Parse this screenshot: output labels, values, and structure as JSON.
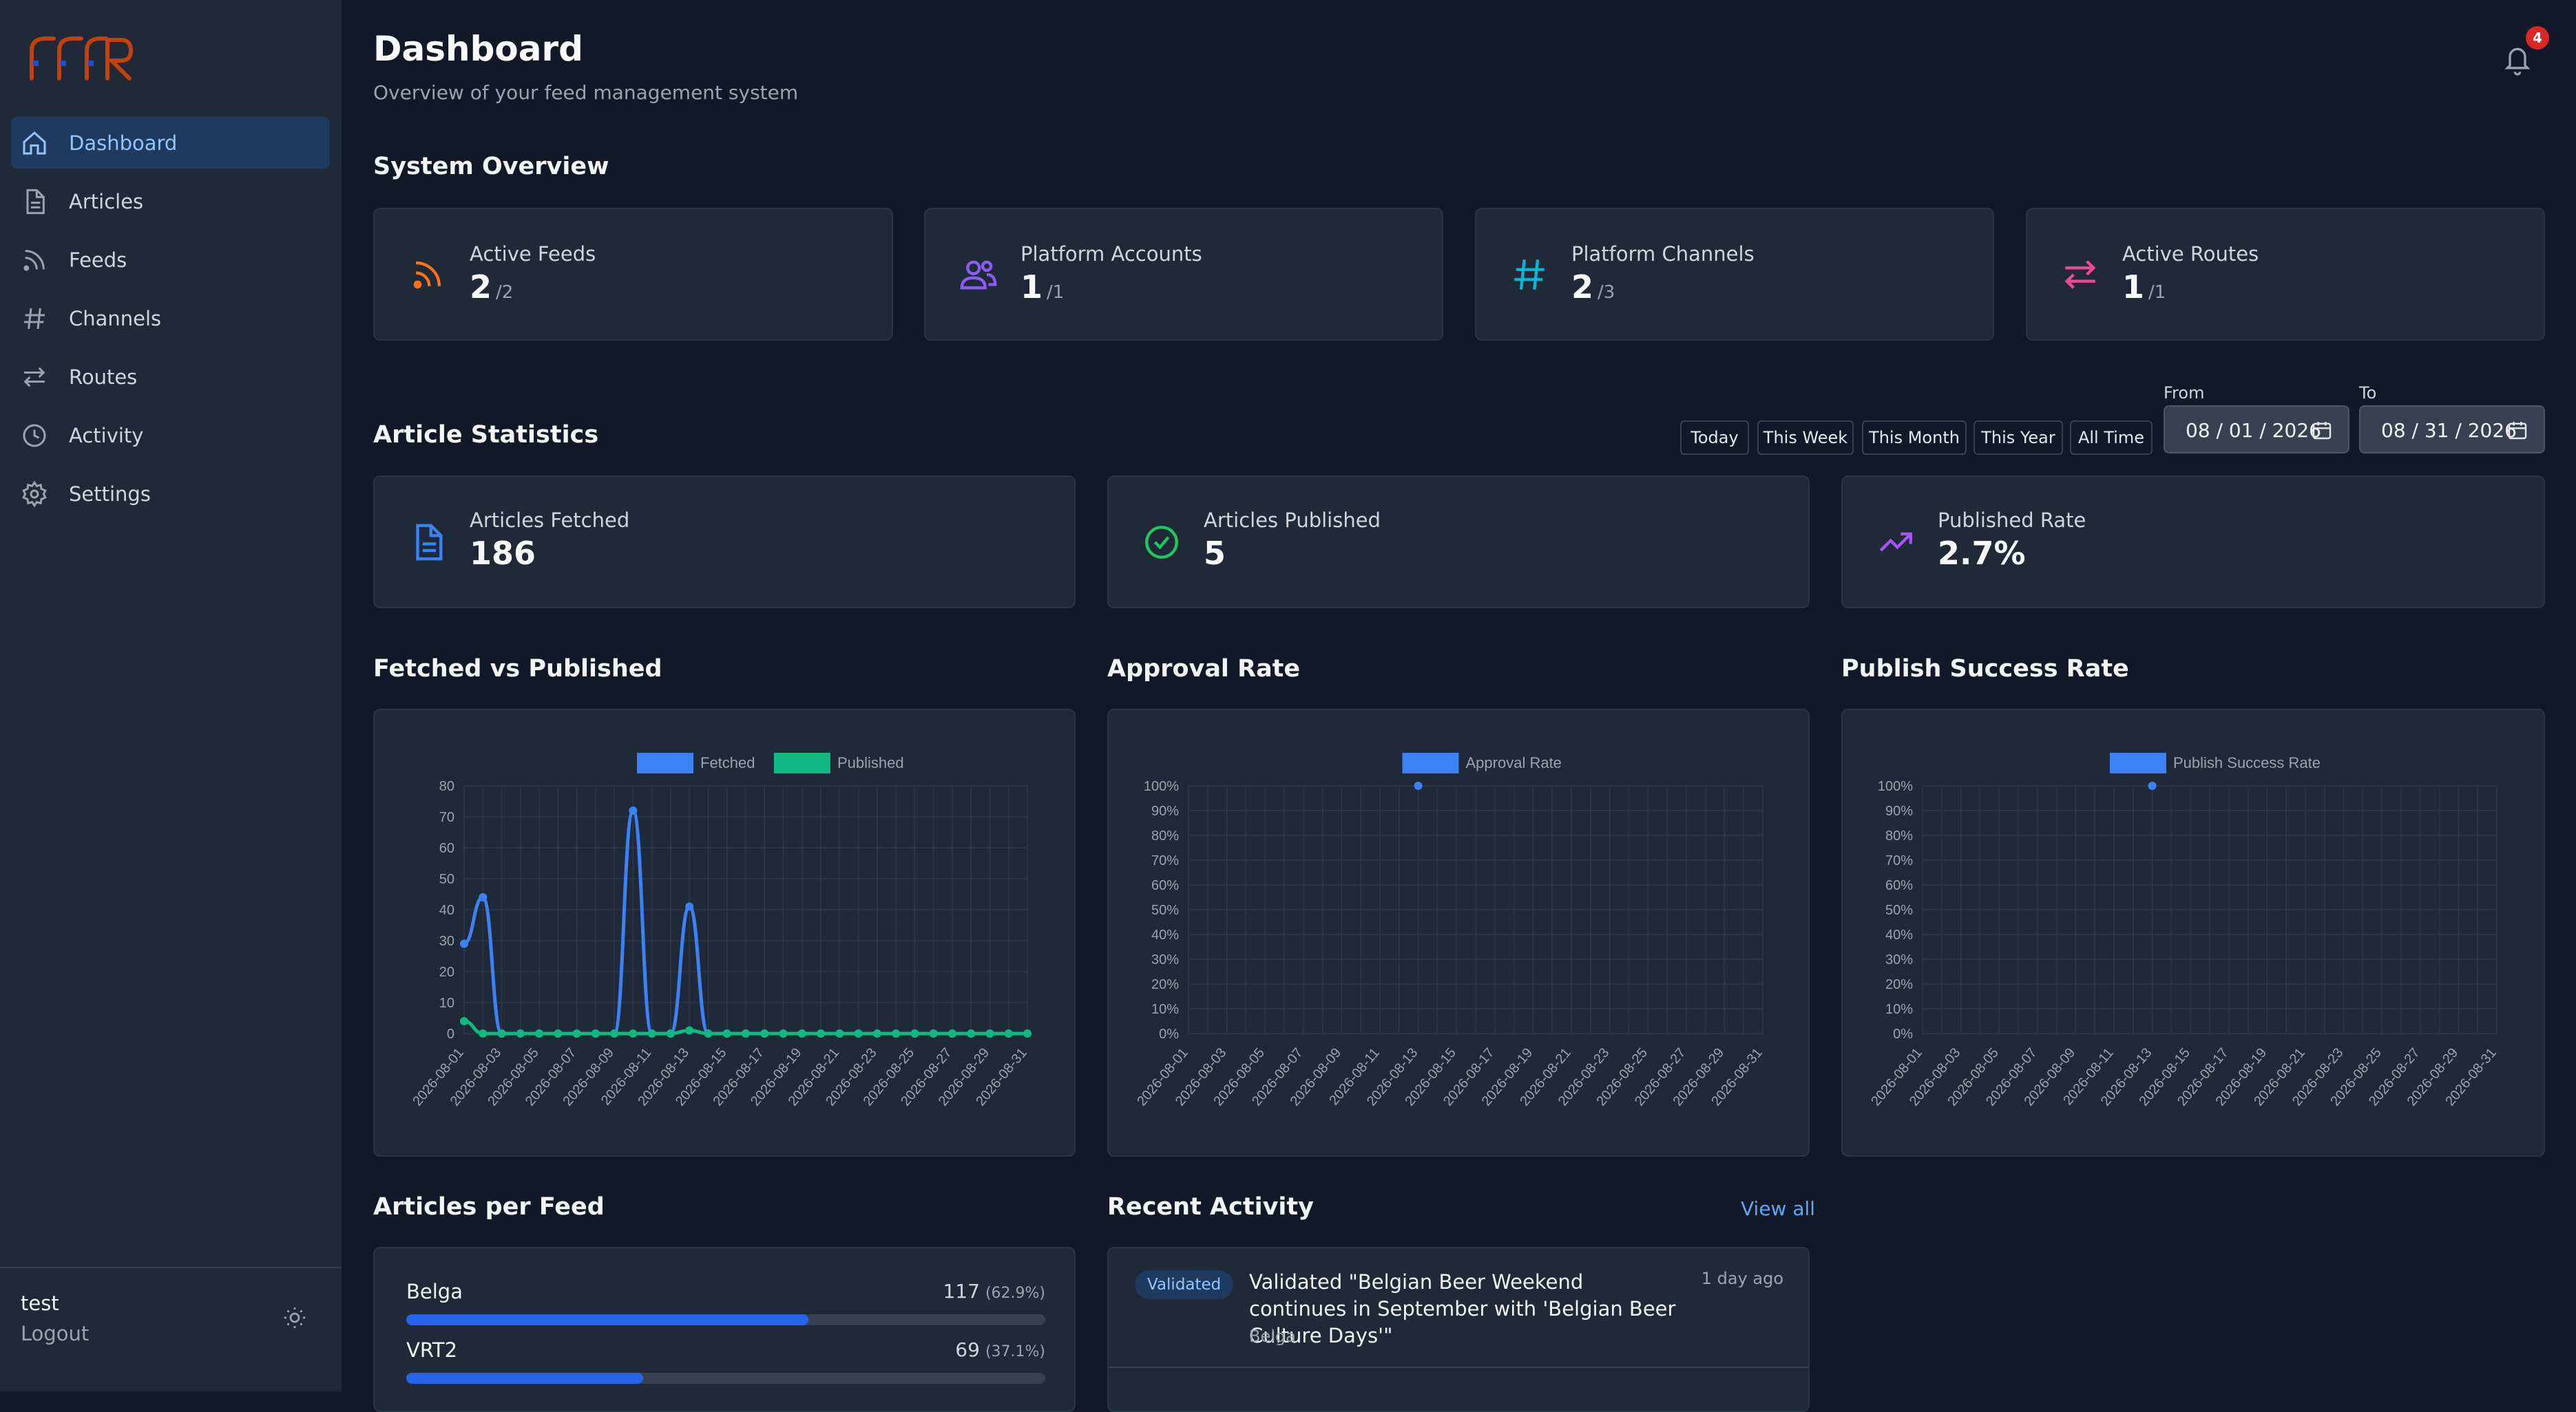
{
  "app": {
    "logo_text": "FFR"
  },
  "sidebar": {
    "items": [
      {
        "label": "Dashboard",
        "icon": "home-icon",
        "active": true
      },
      {
        "label": "Articles",
        "icon": "document-icon"
      },
      {
        "label": "Feeds",
        "icon": "rss-icon"
      },
      {
        "label": "Channels",
        "icon": "hash-icon"
      },
      {
        "label": "Routes",
        "icon": "arrows-exchange-icon"
      },
      {
        "label": "Activity",
        "icon": "clock-icon"
      },
      {
        "label": "Settings",
        "icon": "gear-icon"
      }
    ],
    "user": "test",
    "logout": "Logout",
    "theme_icon": "sun-icon"
  },
  "header": {
    "title": "Dashboard",
    "subtitle": "Overview of your feed management system",
    "notifications": "4"
  },
  "system_overview": {
    "title": "System Overview",
    "cards": [
      {
        "label": "Active Feeds",
        "value": "2",
        "total": "/2",
        "icon": "rss-icon",
        "color": "#f97316"
      },
      {
        "label": "Platform Accounts",
        "value": "1",
        "total": "/1",
        "icon": "users-icon",
        "color": "#8b5cf6"
      },
      {
        "label": "Platform Channels",
        "value": "2",
        "total": "/3",
        "icon": "hash-icon",
        "color": "#06b6d4"
      },
      {
        "label": "Active Routes",
        "value": "1",
        "total": "/1",
        "icon": "arrows-exchange-icon",
        "color": "#ec4899"
      }
    ]
  },
  "article_stats": {
    "title": "Article Statistics",
    "range_buttons": [
      "Today",
      "This Week",
      "This Month",
      "This Year",
      "All Time"
    ],
    "from_label": "From",
    "from_value": "08 / 01 / 2026",
    "to_label": "To",
    "to_value": "08 / 31 / 2026",
    "cards": [
      {
        "label": "Articles Fetched",
        "value": "186",
        "icon": "document-icon",
        "color": "#3b82f6"
      },
      {
        "label": "Articles Published",
        "value": "5",
        "icon": "check-circle-icon",
        "color": "#22c55e"
      },
      {
        "label": "Published Rate",
        "value": "2.7%",
        "icon": "trend-up-icon",
        "color": "#a855f7"
      }
    ]
  },
  "charts": {
    "fetched_vs_published_title": "Fetched vs Published",
    "approval_title": "Approval Rate",
    "publish_success_title": "Publish Success Rate"
  },
  "chart_data": [
    {
      "type": "line",
      "title": "Fetched vs Published",
      "x": [
        "2026-08-01",
        "2026-08-02",
        "2026-08-03",
        "2026-08-04",
        "2026-08-05",
        "2026-08-06",
        "2026-08-07",
        "2026-08-08",
        "2026-08-09",
        "2026-08-10",
        "2026-08-11",
        "2026-08-12",
        "2026-08-13",
        "2026-08-14",
        "2026-08-15",
        "2026-08-16",
        "2026-08-17",
        "2026-08-18",
        "2026-08-19",
        "2026-08-20",
        "2026-08-21",
        "2026-08-22",
        "2026-08-23",
        "2026-08-24",
        "2026-08-25",
        "2026-08-26",
        "2026-08-27",
        "2026-08-28",
        "2026-08-29",
        "2026-08-30",
        "2026-08-31"
      ],
      "x_tick_labels": [
        "2026-08-01",
        "2026-08-03",
        "2026-08-05",
        "2026-08-07",
        "2026-08-09",
        "2026-08-11",
        "2026-08-13",
        "2026-08-15",
        "2026-08-17",
        "2026-08-19",
        "2026-08-21",
        "2026-08-23",
        "2026-08-25",
        "2026-08-27",
        "2026-08-29",
        "2026-08-31"
      ],
      "series": [
        {
          "name": "Fetched",
          "color": "#3b82f6",
          "values": [
            29,
            44,
            0,
            0,
            0,
            0,
            0,
            0,
            0,
            72,
            0,
            0,
            41,
            0,
            0,
            0,
            0,
            0,
            0,
            0,
            0,
            0,
            0,
            0,
            0,
            0,
            0,
            0,
            0,
            0,
            0
          ]
        },
        {
          "name": "Published",
          "color": "#10b981",
          "values": [
            4,
            0,
            0,
            0,
            0,
            0,
            0,
            0,
            0,
            0,
            0,
            0,
            1,
            0,
            0,
            0,
            0,
            0,
            0,
            0,
            0,
            0,
            0,
            0,
            0,
            0,
            0,
            0,
            0,
            0,
            0
          ]
        }
      ],
      "ylim": [
        0,
        80
      ],
      "y_ticks": [
        0,
        10,
        20,
        30,
        40,
        50,
        60,
        70,
        80
      ],
      "legend": "top",
      "grid": true
    },
    {
      "type": "line",
      "title": "Approval Rate",
      "x_tick_labels": [
        "2026-08-01",
        "2026-08-03",
        "2026-08-05",
        "2026-08-07",
        "2026-08-09",
        "2026-08-11",
        "2026-08-13",
        "2026-08-15",
        "2026-08-17",
        "2026-08-19",
        "2026-08-21",
        "2026-08-23",
        "2026-08-25",
        "2026-08-27",
        "2026-08-29",
        "2026-08-31"
      ],
      "series": [
        {
          "name": "Approval Rate",
          "color": "#3b82f6",
          "points": [
            {
              "x": "2026-08-13",
              "y": 100
            }
          ]
        }
      ],
      "ylim": [
        0,
        100
      ],
      "y_ticks": [
        "0%",
        "10%",
        "20%",
        "30%",
        "40%",
        "50%",
        "60%",
        "70%",
        "80%",
        "90%",
        "100%"
      ],
      "legend": "top",
      "grid": true
    },
    {
      "type": "line",
      "title": "Publish Success Rate",
      "x_tick_labels": [
        "2026-08-01",
        "2026-08-03",
        "2026-08-05",
        "2026-08-07",
        "2026-08-09",
        "2026-08-11",
        "2026-08-13",
        "2026-08-15",
        "2026-08-17",
        "2026-08-19",
        "2026-08-21",
        "2026-08-23",
        "2026-08-25",
        "2026-08-27",
        "2026-08-29",
        "2026-08-31"
      ],
      "series": [
        {
          "name": "Publish Success Rate",
          "color": "#3b82f6",
          "points": [
            {
              "x": "2026-08-13",
              "y": 100
            }
          ]
        }
      ],
      "ylim": [
        0,
        100
      ],
      "y_ticks": [
        "0%",
        "10%",
        "20%",
        "30%",
        "40%",
        "50%",
        "60%",
        "70%",
        "80%",
        "90%",
        "100%"
      ],
      "legend": "top",
      "grid": true
    }
  ],
  "articles_per_feed": {
    "title": "Articles per Feed",
    "feeds": [
      {
        "name": "Belga",
        "count": "117",
        "pct": "(62.9%)",
        "fraction": 0.629
      },
      {
        "name": "VRT2",
        "count": "69",
        "pct": "(37.1%)",
        "fraction": 0.371
      }
    ]
  },
  "recent_activity": {
    "title": "Recent Activity",
    "view_all": "View all",
    "items": [
      {
        "badge": "Validated",
        "text": "Validated \"Belgian Beer Weekend continues in September with 'Belgian Beer Culture Days'\"",
        "source": "Belga",
        "time": "1 day ago"
      }
    ]
  }
}
